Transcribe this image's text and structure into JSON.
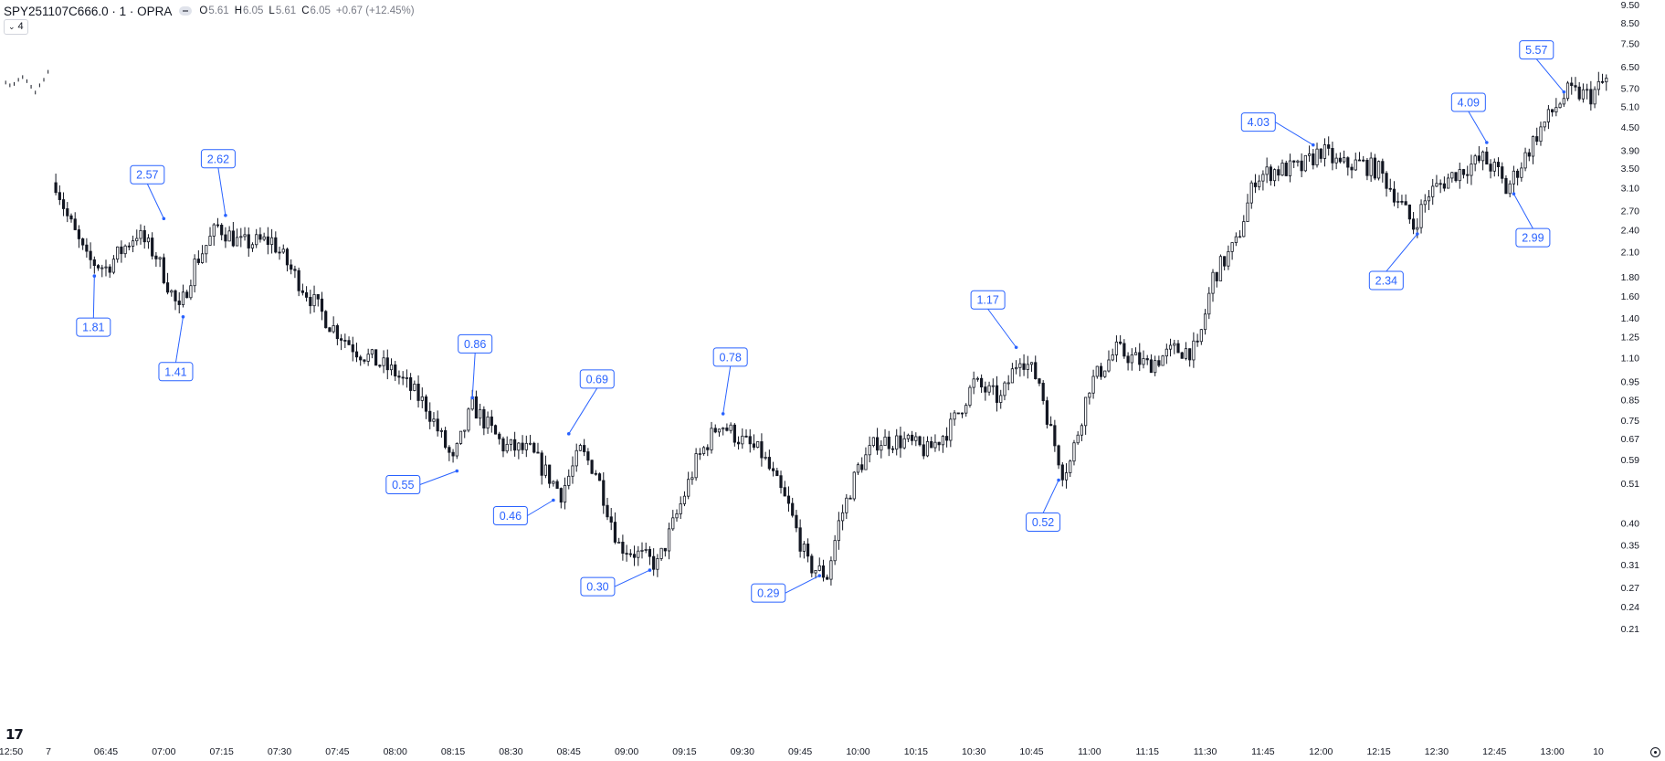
{
  "header": {
    "symbol": "SPY251107C666.0 · 1 · OPRA",
    "open_label": "O",
    "open": "5.61",
    "high_label": "H",
    "high": "6.05",
    "low_label": "L",
    "low": "5.61",
    "close_label": "C",
    "close": "6.05",
    "change": "+0.67 (+12.45%)",
    "indicator_count": "4"
  },
  "chart_data": {
    "type": "candlestick",
    "title": "SPY251107C666.0 · 1 · OPRA",
    "y_scale": "log",
    "ylim": [
      0.19,
      9.5
    ],
    "y_ticks": [
      "9.50",
      "8.50",
      "7.50",
      "6.50",
      "5.70",
      "5.10",
      "4.50",
      "3.90",
      "3.50",
      "3.10",
      "2.70",
      "2.40",
      "2.10",
      "1.80",
      "1.60",
      "1.40",
      "1.25",
      "1.10",
      "0.95",
      "0.85",
      "0.75",
      "0.67",
      "0.59",
      "0.51",
      "0.40",
      "0.35",
      "0.31",
      "0.27",
      "0.24",
      "0.21"
    ],
    "x_ticks": [
      "12:50",
      "7",
      "06:45",
      "07:00",
      "07:15",
      "07:30",
      "07:45",
      "08:00",
      "08:15",
      "08:30",
      "08:45",
      "09:00",
      "09:15",
      "09:30",
      "09:45",
      "10:00",
      "10:15",
      "10:30",
      "10:45",
      "11:00",
      "11:15",
      "11:30",
      "11:45",
      "12:00",
      "12:15",
      "12:30",
      "12:45",
      "13:00",
      "10"
    ],
    "path": [
      [
        "06:32",
        3.2
      ],
      [
        "06:35",
        2.6
      ],
      [
        "06:40",
        2.0
      ],
      [
        "06:45",
        1.9
      ],
      [
        "06:53",
        2.35
      ],
      [
        "06:58",
        2.05
      ],
      [
        "07:04",
        1.45
      ],
      [
        "07:08",
        1.95
      ],
      [
        "07:14",
        2.45
      ],
      [
        "07:20",
        2.2
      ],
      [
        "07:28",
        2.25
      ],
      [
        "07:35",
        1.75
      ],
      [
        "07:43",
        1.35
      ],
      [
        "07:50",
        1.15
      ],
      [
        "08:00",
        1.0
      ],
      [
        "08:08",
        0.82
      ],
      [
        "08:15",
        0.58
      ],
      [
        "08:20",
        0.82
      ],
      [
        "08:28",
        0.64
      ],
      [
        "08:35",
        0.62
      ],
      [
        "08:43",
        0.48
      ],
      [
        "08:48",
        0.62
      ],
      [
        "08:52",
        0.55
      ],
      [
        "08:58",
        0.35
      ],
      [
        "09:03",
        0.33
      ],
      [
        "09:08",
        0.31
      ],
      [
        "09:13",
        0.42
      ],
      [
        "09:18",
        0.58
      ],
      [
        "09:24",
        0.74
      ],
      [
        "09:30",
        0.66
      ],
      [
        "09:35",
        0.61
      ],
      [
        "09:42",
        0.44
      ],
      [
        "09:47",
        0.31
      ],
      [
        "09:52",
        0.29
      ],
      [
        "09:55",
        0.4
      ],
      [
        "10:00",
        0.56
      ],
      [
        "10:05",
        0.66
      ],
      [
        "10:12",
        0.66
      ],
      [
        "10:18",
        0.62
      ],
      [
        "10:24",
        0.72
      ],
      [
        "10:30",
        0.94
      ],
      [
        "10:37",
        0.85
      ],
      [
        "10:42",
        1.12
      ],
      [
        "10:47",
        0.95
      ],
      [
        "10:50",
        0.7
      ],
      [
        "10:53",
        0.55
      ],
      [
        "10:55",
        0.58
      ],
      [
        "11:00",
        0.93
      ],
      [
        "11:07",
        1.15
      ],
      [
        "11:15",
        1.05
      ],
      [
        "11:22",
        1.15
      ],
      [
        "11:28",
        1.15
      ],
      [
        "11:32",
        1.8
      ],
      [
        "11:38",
        2.2
      ],
      [
        "11:43",
        3.3
      ],
      [
        "11:48",
        3.45
      ],
      [
        "11:55",
        3.5
      ],
      [
        "12:00",
        3.9
      ],
      [
        "12:05",
        3.55
      ],
      [
        "12:10",
        3.6
      ],
      [
        "12:15",
        3.45
      ],
      [
        "12:20",
        2.9
      ],
      [
        "12:24",
        2.45
      ],
      [
        "12:28",
        3.0
      ],
      [
        "12:35",
        3.4
      ],
      [
        "12:42",
        3.7
      ],
      [
        "12:46",
        3.4
      ],
      [
        "12:48",
        3.05
      ],
      [
        "12:52",
        3.6
      ],
      [
        "12:56",
        4.3
      ],
      [
        "13:01",
        5.1
      ],
      [
        "13:04",
        5.55
      ],
      [
        "13:10",
        5.45
      ],
      [
        "13:14",
        6.0
      ]
    ],
    "pre_session": {
      "x_range": [
        "06:19",
        "06:30"
      ],
      "values": [
        5.9,
        5.8,
        5.85,
        6.0,
        6.1,
        5.95,
        5.75,
        5.55,
        5.8,
        6.0,
        6.3
      ]
    },
    "annotations": [
      {
        "label": "2.57",
        "x": "07:00",
        "y": 2.57,
        "side": "above"
      },
      {
        "label": "1.81",
        "x": "06:42",
        "y": 1.81,
        "side": "below"
      },
      {
        "label": "2.62",
        "x": "07:16",
        "y": 2.62,
        "side": "above"
      },
      {
        "label": "1.41",
        "x": "07:05",
        "y": 1.41,
        "side": "below"
      },
      {
        "label": "0.86",
        "x": "08:20",
        "y": 0.86,
        "side": "above"
      },
      {
        "label": "0.55",
        "x": "08:16",
        "y": 0.55,
        "side": "below"
      },
      {
        "label": "0.69",
        "x": "08:45",
        "y": 0.69,
        "side": "above"
      },
      {
        "label": "0.46",
        "x": "08:41",
        "y": 0.46,
        "side": "below"
      },
      {
        "label": "0.30",
        "x": "09:06",
        "y": 0.3,
        "side": "below"
      },
      {
        "label": "0.78",
        "x": "09:25",
        "y": 0.78,
        "side": "above"
      },
      {
        "label": "0.29",
        "x": "09:50",
        "y": 0.29,
        "side": "below"
      },
      {
        "label": "1.17",
        "x": "10:41",
        "y": 1.17,
        "side": "above"
      },
      {
        "label": "0.52",
        "x": "10:52",
        "y": 0.52,
        "side": "below"
      },
      {
        "label": "4.03",
        "x": "11:58",
        "y": 4.03,
        "side": "above"
      },
      {
        "label": "2.34",
        "x": "12:25",
        "y": 2.34,
        "side": "below"
      },
      {
        "label": "4.09",
        "x": "12:43",
        "y": 4.09,
        "side": "above"
      },
      {
        "label": "2.99",
        "x": "12:50",
        "y": 2.99,
        "side": "below"
      },
      {
        "label": "5.57",
        "x": "13:03",
        "y": 5.57,
        "side": "above"
      }
    ],
    "grid": false,
    "legend": "none"
  }
}
